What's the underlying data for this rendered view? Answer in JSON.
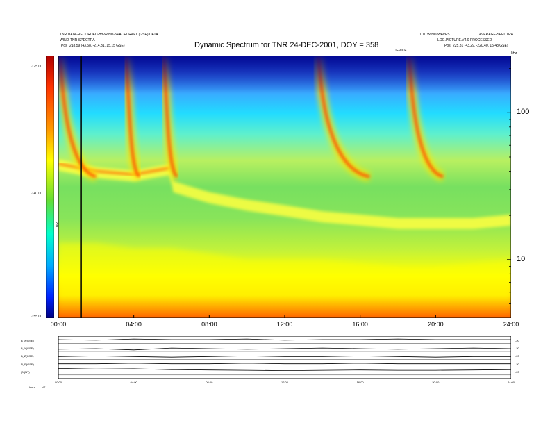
{
  "header": {
    "left_line1": "TNR DATA-RECORDED-BY-WIND-SPACECRAFT (GSE) DATA",
    "left_line2": "WIND-TNR-SPECTRA",
    "pos_label": "Pos",
    "pos_left": "218.59 (43.58, -214.31, 15.15 GSE)",
    "right_line1": "1.10 WIND-WAVES",
    "right_line2": "AVERAGE-SPECTRA",
    "right_line3": "LOG.PICTURE.V4.0 PROCESSED",
    "pos_right": "225.81 (43.29, -220.40, 15.48 GSE)",
    "center_label": "DEVICE",
    "khz_label": "kHz"
  },
  "title": "Dynamic Spectrum for TNR 24-DEC-2001, DOY = 358",
  "colorbar": {
    "ticks": [
      "-125.00",
      "-140.00",
      "-155.00"
    ],
    "unit_label": "TNR"
  },
  "chart_data": [
    {
      "type": "heatmap",
      "title": "Dynamic Spectrum for TNR 24-DEC-2001, DOY = 358",
      "xlabel": "",
      "ylabel": "",
      "x_ticks": [
        "00:00",
        "04:00",
        "08:00",
        "12:00",
        "16:00",
        "20:00",
        "24:00"
      ],
      "xlim_hours": [
        0,
        24
      ],
      "y_ticks": [
        "100",
        "10"
      ],
      "y_tick_values": [
        100,
        10
      ],
      "y_scale": "log",
      "ylim_khz": [
        4,
        245
      ],
      "color_range": [
        -155,
        -125
      ],
      "colormap": [
        "#0000a0",
        "#0055ff",
        "#00e6ff",
        "#ffff00",
        "#ff8c00",
        "#dd0000"
      ],
      "marker_line_hour": 1.2,
      "features": {
        "plasma_line_upper_hours": [
          0,
          2,
          4,
          5.9,
          6.1,
          8,
          10,
          12,
          14,
          16,
          18,
          20,
          22,
          24
        ],
        "plasma_line_upper_khz": [
          45,
          40,
          38,
          42,
          32,
          27,
          24,
          22,
          20,
          19,
          18,
          18,
          18,
          19
        ],
        "plasma_line_lower_hours": [
          0,
          2,
          4,
          6,
          8,
          10,
          12,
          14,
          16,
          18,
          20,
          22,
          24
        ],
        "plasma_line_lower_khz": [
          13,
          13,
          12,
          12,
          11,
          10,
          10,
          10,
          9.5,
          9,
          9,
          9.5,
          10
        ],
        "radio_burst_start_hours": [
          0.1,
          3.6,
          5.6,
          13.8,
          18.6
        ],
        "radio_burst_end_hours": [
          2.0,
          4.3,
          6.3,
          16.5,
          20.4
        ]
      }
    },
    {
      "type": "line",
      "title": "",
      "x_ticks": [
        "00:00",
        "04:00",
        "08:00",
        "12:00",
        "16:00",
        "20:00",
        "24:00"
      ],
      "xlim_hours": [
        0,
        24
      ],
      "series": [
        {
          "name": "B_X(GSE)",
          "values": [
            0.2,
            0.1,
            0.3,
            0.2,
            0.2,
            0.3,
            0.1,
            0.2,
            0.2,
            0.3,
            0.2,
            0.2,
            0.2
          ]
        },
        {
          "name": "B_Y(GSE)",
          "values": [
            -0.1,
            0.0,
            -0.2,
            0.1,
            0.0,
            -0.1,
            0.0,
            0.1,
            0.0,
            -0.1,
            0.0,
            0.1,
            0.0
          ]
        },
        {
          "name": "B_Z(GSE)",
          "values": [
            0.0,
            0.1,
            0.0,
            -0.1,
            0.0,
            0.1,
            0.0,
            0.0,
            0.1,
            0.0,
            -0.1,
            0.0,
            0.0
          ]
        },
        {
          "name": "N_P(GSE)",
          "values": [
            0.1,
            0.1,
            0.2,
            0.1,
            0.1,
            0.2,
            0.1,
            0.1,
            0.2,
            0.1,
            0.1,
            0.1,
            0.1
          ]
        },
        {
          "name": "|B|(NT)",
          "values": [
            0.6,
            0.5,
            0.55,
            0.4,
            0.35,
            0.3,
            0.25,
            0.3,
            0.35,
            0.3,
            0.3,
            0.35,
            0.4
          ]
        }
      ],
      "right_axis_labels": [
        "-20",
        "-20",
        "-20",
        "-20",
        "-20"
      ]
    }
  ],
  "bottom": {
    "left_label": "Hours",
    "left_unit": "UT"
  }
}
